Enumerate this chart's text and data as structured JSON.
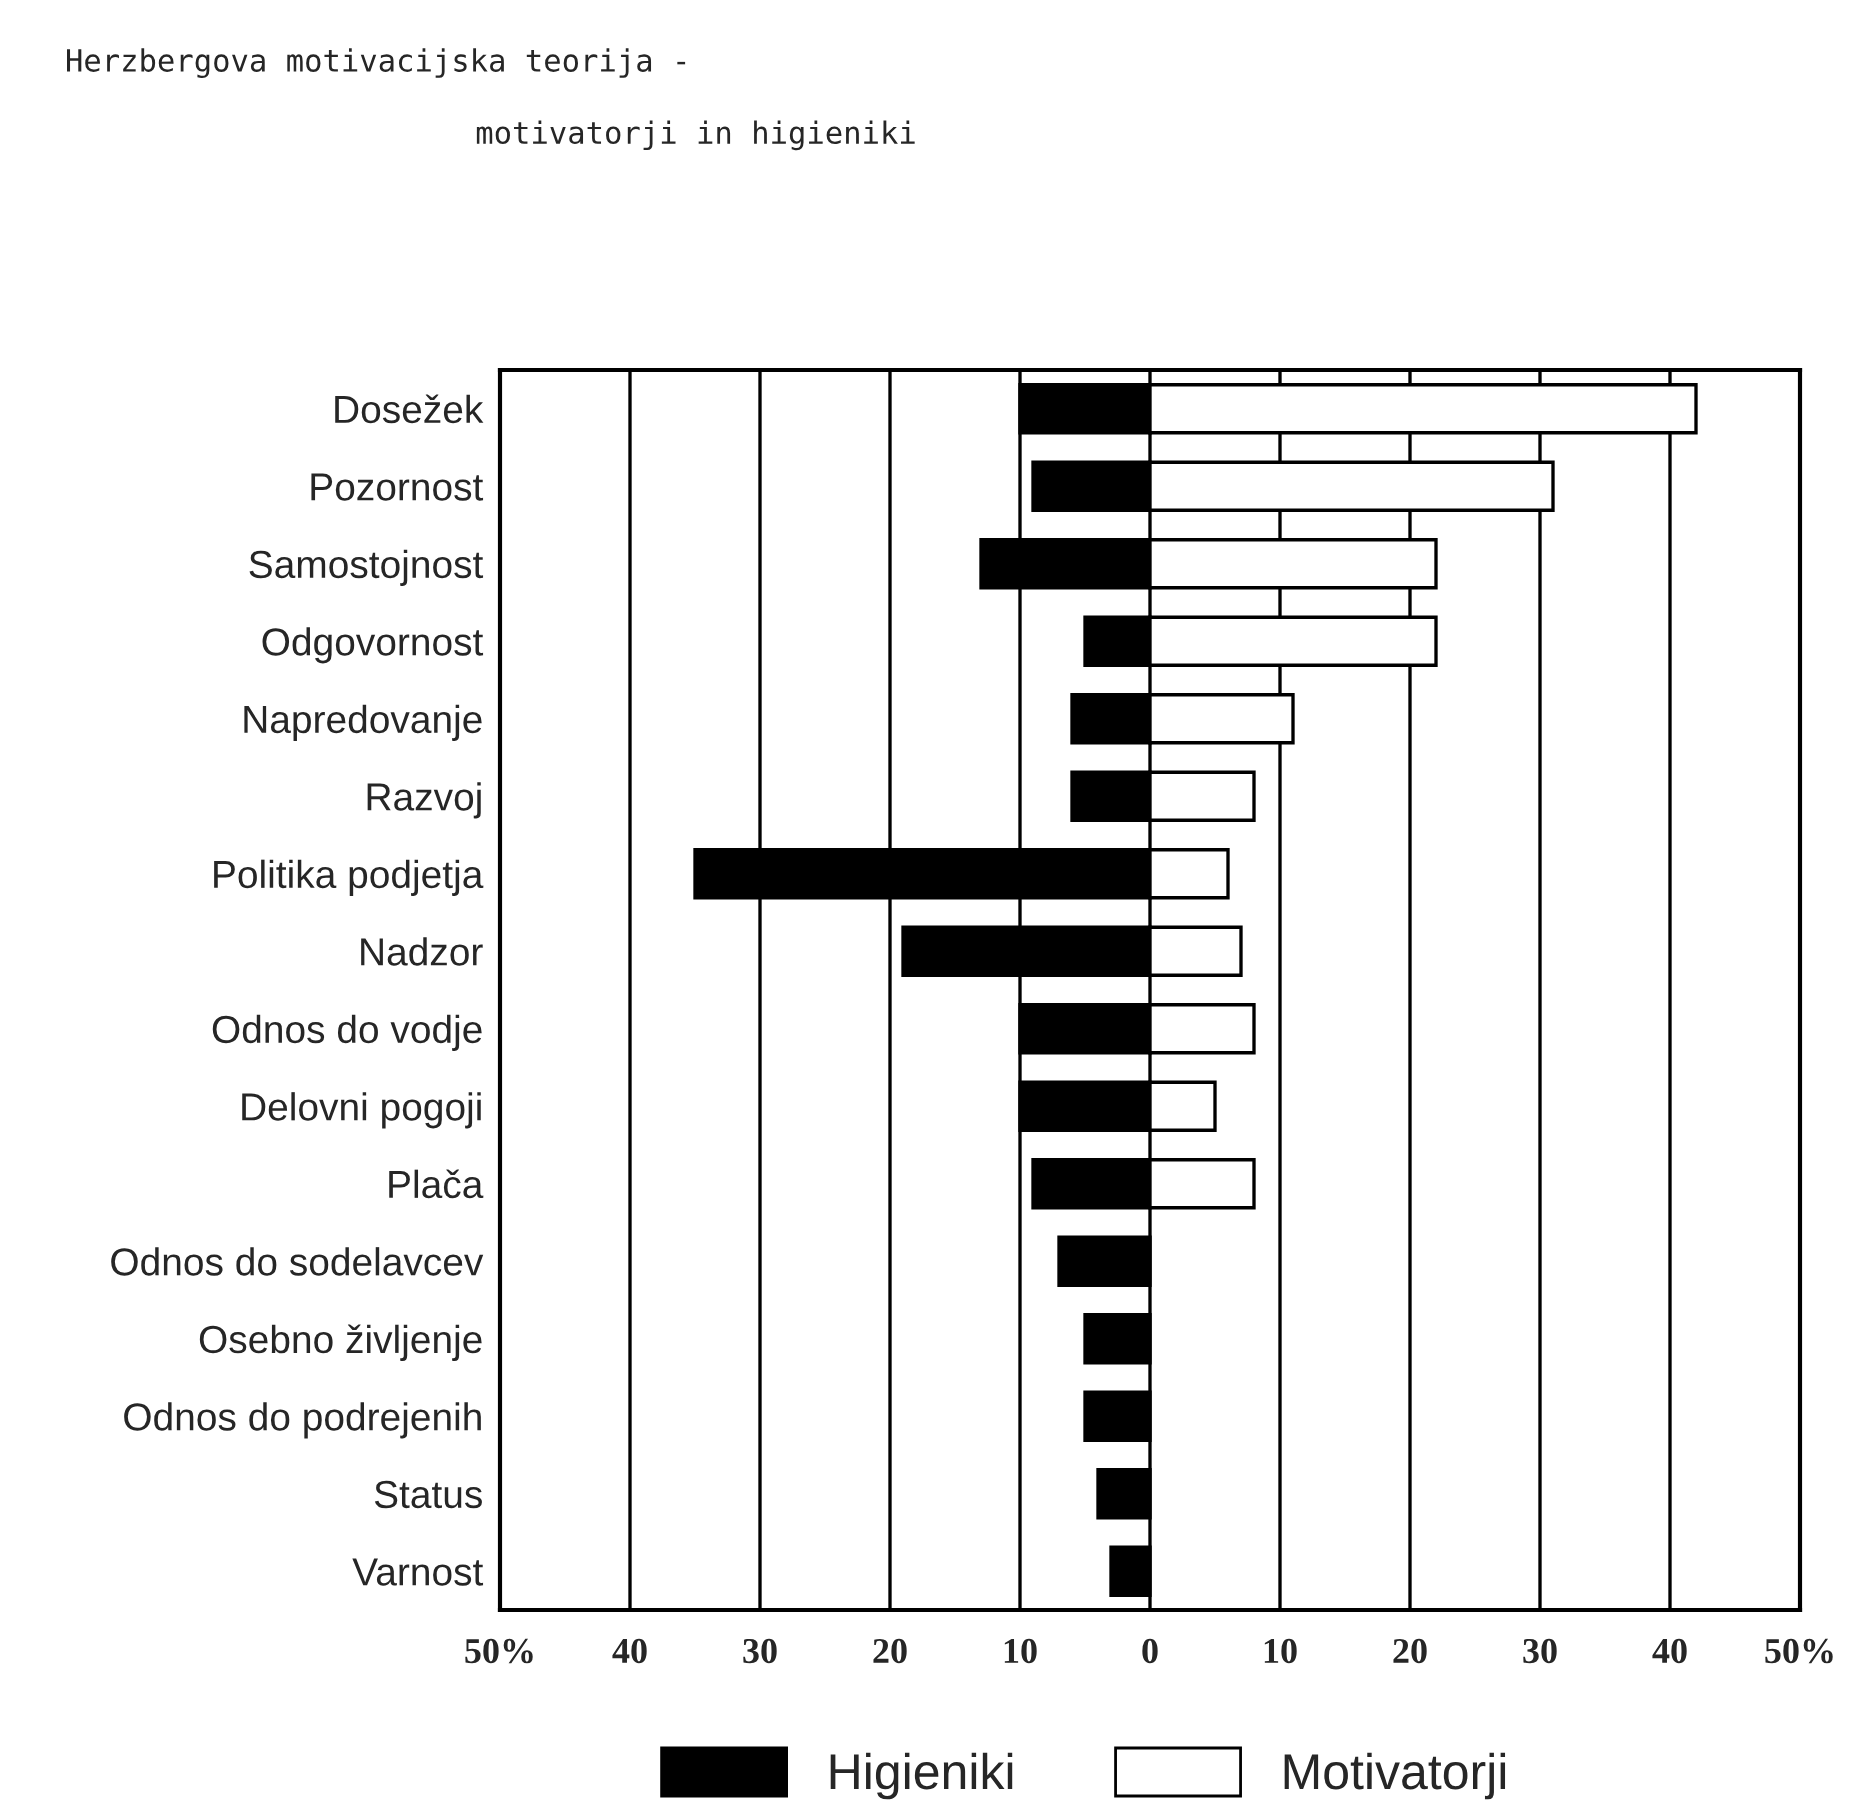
{
  "chart_data": {
    "type": "bar",
    "orientation": "horizontal",
    "title": "Herzbergova motivacijska teorija -",
    "subtitle": "motivatorji in higieniki",
    "categories": [
      "Dosežek",
      "Pozornost",
      "Samostojnost",
      "Odgovornost",
      "Napredovanje",
      "Razvoj",
      "Politika podjetja",
      "Nadzor",
      "Odnos do vodje",
      "Delovni pogoji",
      "Plača",
      "Odnos do sodelavcev",
      "Osebno življenje",
      "Odnos do podrejenih",
      "Status",
      "Varnost"
    ],
    "series": [
      {
        "name": "Higieniki",
        "color": "#000000",
        "values": [
          -10,
          -9,
          -13,
          -5,
          -6,
          -6,
          -35,
          -19,
          -10,
          -10,
          -9,
          -7,
          -5,
          -5,
          -4,
          -3
        ]
      },
      {
        "name": "Motivatorji",
        "color": "#ffffff",
        "values": [
          42,
          31,
          22,
          22,
          11,
          8,
          6,
          7,
          8,
          5,
          8,
          null,
          null,
          null,
          null,
          null
        ]
      }
    ],
    "xlim": [
      -50,
      50
    ],
    "xticks": [
      {
        "value": -50,
        "label": "50%"
      },
      {
        "value": -40,
        "label": "40"
      },
      {
        "value": -30,
        "label": "30"
      },
      {
        "value": -20,
        "label": "20"
      },
      {
        "value": -10,
        "label": "10"
      },
      0,
      10,
      20,
      30,
      40,
      {
        "value": 50,
        "label": "50%"
      }
    ],
    "grid": "x",
    "legend": "bottom",
    "stacked": true
  }
}
